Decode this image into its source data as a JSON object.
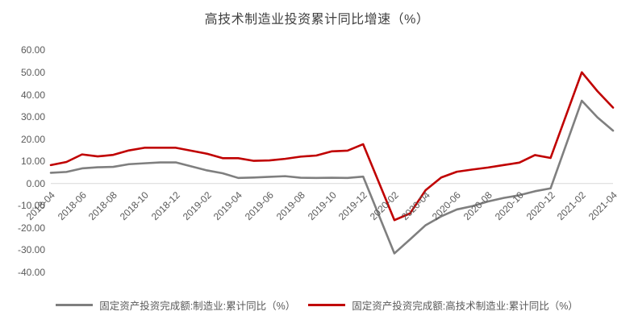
{
  "title": "高技术制造业投资累计同比增速（%）",
  "colors": {
    "background": "#ffffff",
    "title_text": "#404040",
    "tick_text": "#595959",
    "axis_line": "#d9d9d9",
    "manufacturing_series": "#7f7f7f",
    "hightech_series": "#c00000"
  },
  "chart_data": {
    "type": "line",
    "title": "高技术制造业投资累计同比增速（%）",
    "x": [
      "2018-04",
      "2018-05",
      "2018-06",
      "2018-07",
      "2018-08",
      "2018-09",
      "2018-10",
      "2018-11",
      "2018-12",
      "2019-02",
      "2019-03",
      "2019-04",
      "2019-05",
      "2019-06",
      "2019-07",
      "2019-08",
      "2019-09",
      "2019-10",
      "2019-11",
      "2019-12",
      "2020-02",
      "2020-03",
      "2020-04",
      "2020-05",
      "2020-06",
      "2020-07",
      "2020-08",
      "2020-09",
      "2020-10",
      "2020-11",
      "2020-12",
      "2021-02",
      "2021-03",
      "2021-04"
    ],
    "series": [
      {
        "name": "固定资产投资完成额:制造业:累计同比（%）",
        "color": "#7f7f7f",
        "values": [
          4.8,
          5.2,
          6.8,
          7.3,
          7.5,
          8.7,
          9.1,
          9.5,
          9.5,
          5.9,
          4.6,
          2.5,
          2.7,
          3.0,
          3.3,
          2.6,
          2.5,
          2.6,
          2.5,
          3.1,
          -31.5,
          -25.2,
          -18.8,
          -14.8,
          -11.7,
          -10.2,
          -8.1,
          -6.5,
          -5.3,
          -3.5,
          -2.2,
          37.3,
          29.8,
          23.8
        ]
      },
      {
        "name": "固定资产投资完成额:高技术制造业:累计同比（%）",
        "color": "#c00000",
        "values": [
          8.3,
          9.7,
          13.1,
          12.2,
          12.9,
          14.9,
          16.1,
          16.1,
          16.1,
          13.4,
          11.4,
          11.4,
          10.2,
          10.4,
          11.1,
          12.1,
          12.6,
          14.5,
          14.8,
          17.7,
          -16.5,
          -13.5,
          -3.0,
          2.7,
          5.3,
          6.3,
          7.2,
          8.3,
          9.4,
          12.8,
          11.5,
          50.1,
          41.6,
          34.2
        ]
      }
    ],
    "ylim": [
      -40,
      60
    ],
    "ytick_step": 10,
    "ytick_labels": [
      "60.00",
      "50.00",
      "40.00",
      "30.00",
      "20.00",
      "10.00",
      "0.00",
      "-10.00",
      "-20.00",
      "-30.00",
      "-40.00"
    ],
    "xtick_labels": [
      "2018-04",
      "2018-06",
      "2018-08",
      "2018-10",
      "2018-12",
      "2019-02",
      "2019-04",
      "2019-06",
      "2019-08",
      "2019-10",
      "2019-12",
      "2020-02",
      "2020-04",
      "2020-06",
      "2020-08",
      "2020-10",
      "2020-12",
      "2021-02",
      "2021-04"
    ],
    "grid": "off",
    "axis": "only zero baseline shown",
    "legend_position": "bottom"
  }
}
